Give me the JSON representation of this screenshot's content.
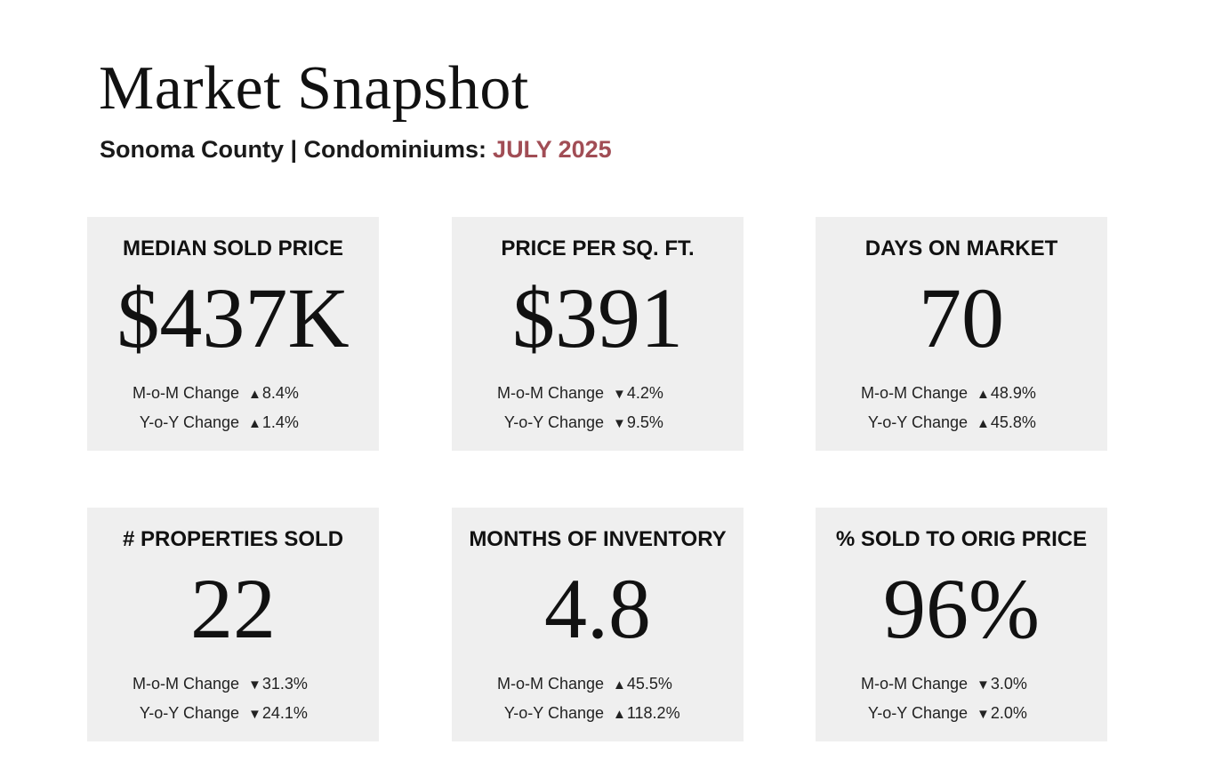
{
  "header": {
    "title": "Market Snapshot",
    "subtitle": "Sonoma County | Condominiums:",
    "month": "JULY 2025",
    "accent_color": "#a14d55"
  },
  "cards": [
    {
      "label": "MEDIAN SOLD PRICE",
      "value": "$437K",
      "mom_label": "M-o-M Change",
      "mom_arrow": "▲",
      "mom_value": "8.4%",
      "yoy_label": "Y-o-Y Change",
      "yoy_arrow": "▲",
      "yoy_value": "1.4%"
    },
    {
      "label": "PRICE PER SQ. FT.",
      "value": "$391",
      "mom_label": "M-o-M Change",
      "mom_arrow": "▼",
      "mom_value": "4.2%",
      "yoy_label": "Y-o-Y Change",
      "yoy_arrow": "▼",
      "yoy_value": "9.5%"
    },
    {
      "label": "DAYS ON MARKET",
      "value": "70",
      "mom_label": "M-o-M Change",
      "mom_arrow": "▲",
      "mom_value": "48.9%",
      "yoy_label": "Y-o-Y Change",
      "yoy_arrow": "▲",
      "yoy_value": "45.8%"
    },
    {
      "label": "# PROPERTIES SOLD",
      "value": "22",
      "mom_label": "M-o-M Change",
      "mom_arrow": "▼",
      "mom_value": "31.3%",
      "yoy_label": "Y-o-Y Change",
      "yoy_arrow": "▼",
      "yoy_value": "24.1%"
    },
    {
      "label": "MONTHS OF INVENTORY",
      "value": "4.8",
      "mom_label": "M-o-M Change",
      "mom_arrow": "▲",
      "mom_value": "45.5%",
      "yoy_label": "Y-o-Y Change",
      "yoy_arrow": "▲",
      "yoy_value": "118.2%"
    },
    {
      "label": "% SOLD TO ORIG PRICE",
      "value": "96%",
      "mom_label": "M-o-M Change",
      "mom_arrow": "▼",
      "mom_value": "3.0%",
      "yoy_label": "Y-o-Y Change",
      "yoy_arrow": "▼",
      "yoy_value": "2.0%"
    }
  ]
}
